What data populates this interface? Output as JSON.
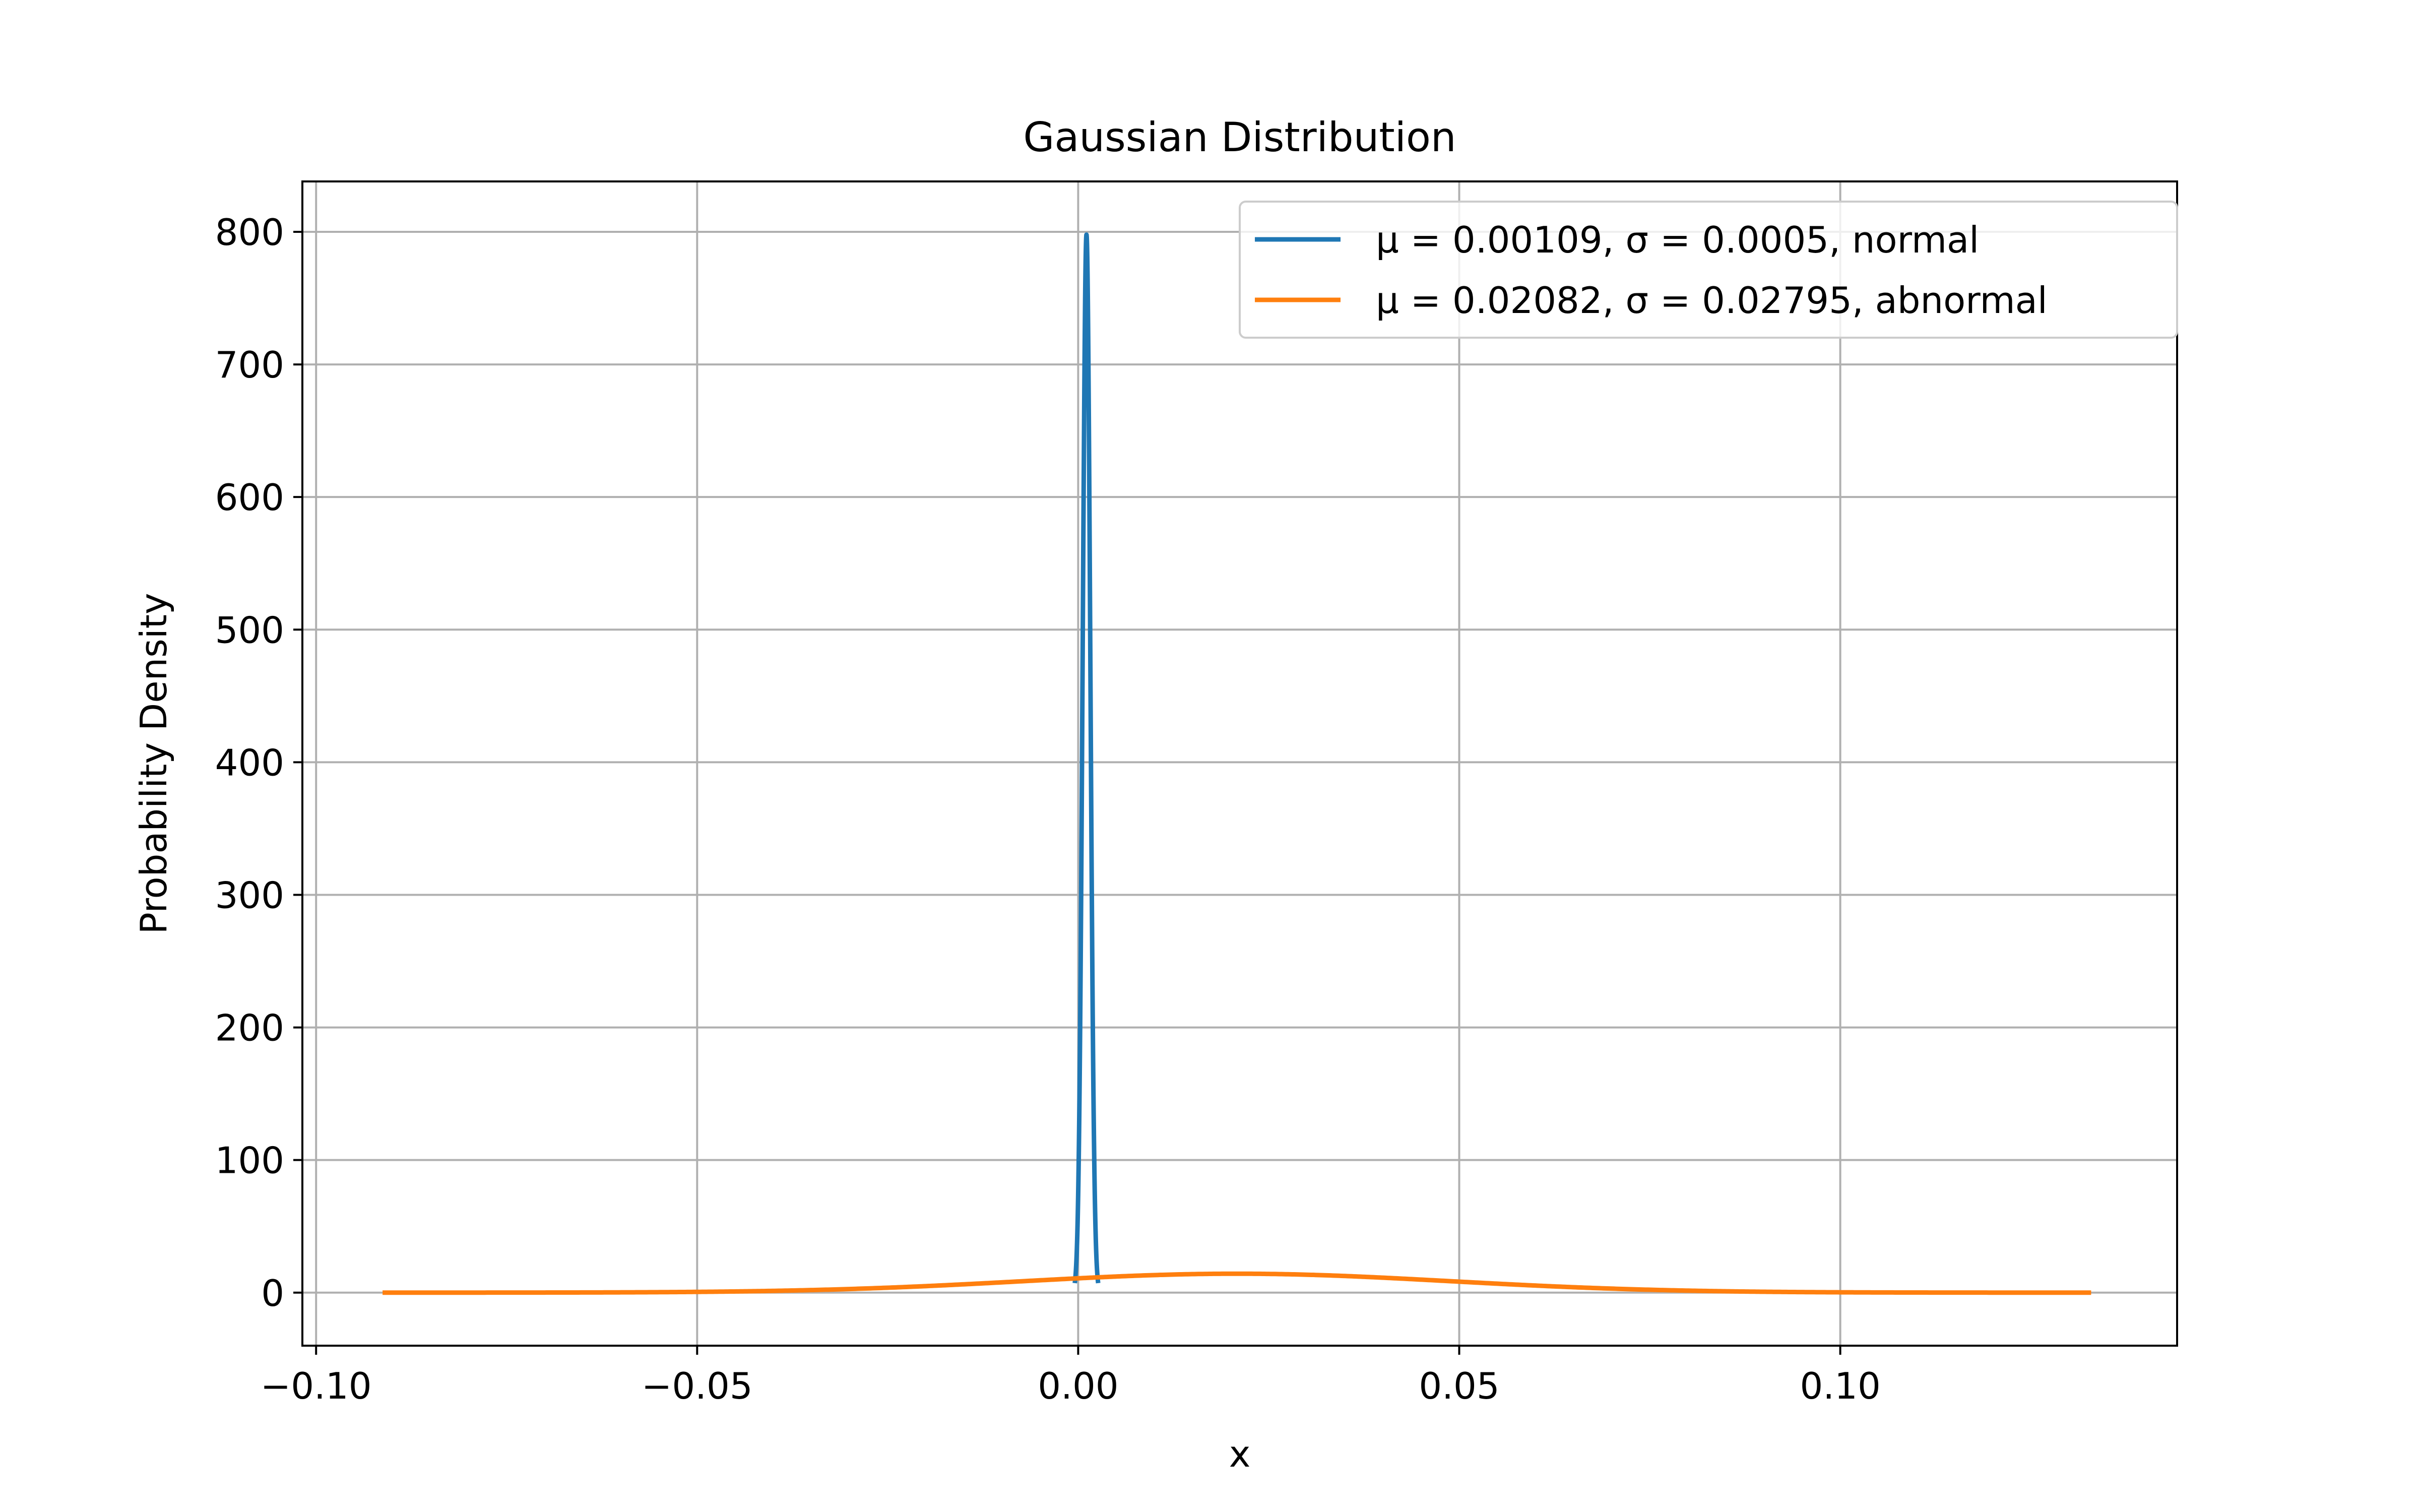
{
  "chart_data": {
    "type": "line",
    "title": "Gaussian Distribution",
    "xlabel": "x",
    "ylabel": "Probability Density",
    "xlim": [
      -0.1018,
      0.1442
    ],
    "ylim": [
      -40,
      838
    ],
    "xticks": [
      -0.1,
      -0.05,
      0.0,
      0.05,
      0.1
    ],
    "xtick_labels": [
      "−0.10",
      "−0.05",
      "0.00",
      "0.05",
      "0.10"
    ],
    "yticks": [
      0,
      100,
      200,
      300,
      400,
      500,
      600,
      700,
      800
    ],
    "ytick_labels": [
      "0",
      "100",
      "200",
      "300",
      "400",
      "500",
      "600",
      "700",
      "800"
    ],
    "grid": true,
    "legend_position": "top-right",
    "series": [
      {
        "name": "μ = 0.00109, σ = 0.0005, normal",
        "distribution": "gaussian",
        "mu": 0.00109,
        "sigma": 0.0005,
        "x_range": [
          -0.00041,
          0.00259
        ],
        "color": "#1f77b4"
      },
      {
        "name": "μ = 0.02082, σ = 0.02795, abnormal",
        "distribution": "gaussian",
        "mu": 0.02082,
        "sigma": 0.02795,
        "x_range": [
          -0.09098,
          0.13262
        ],
        "color": "#ff7f0e"
      }
    ]
  }
}
